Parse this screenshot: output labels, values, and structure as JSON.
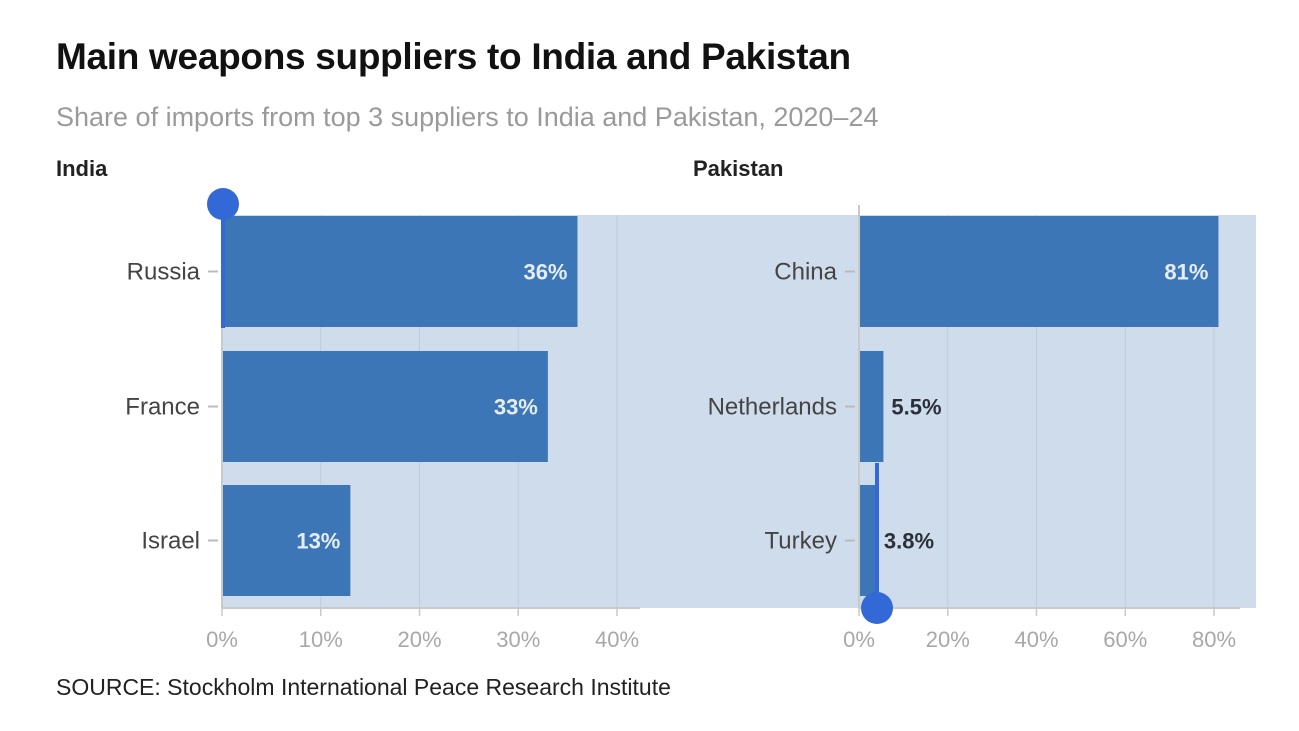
{
  "title": "Main weapons suppliers to India and Pakistan",
  "subtitle": "Share of imports from top 3 suppliers to India and Pakistan, 2020–24",
  "source": "SOURCE: Stockholm International Peace Research Institute",
  "colors": {
    "bar": "#3d76b6",
    "plot_background": "#cfdcec",
    "handle": "#3369d6",
    "label_inside": "#e4edf8",
    "label_outside": "#2a2f3a"
  },
  "chart_data": [
    {
      "type": "bar",
      "orientation": "horizontal",
      "panel_title": "India",
      "categories": [
        "Russia",
        "France",
        "Israel"
      ],
      "values": [
        36,
        33,
        13
      ],
      "value_labels": [
        "36%",
        "33%",
        "13%"
      ],
      "xlim": [
        0,
        44
      ],
      "xticks": [
        0,
        10,
        20,
        30,
        40
      ],
      "xtick_labels": [
        "0%",
        "10%",
        "20%",
        "30%",
        "40%"
      ],
      "unit": "%"
    },
    {
      "type": "bar",
      "orientation": "horizontal",
      "panel_title": "Pakistan",
      "categories": [
        "China",
        "Netherlands",
        "Turkey"
      ],
      "values": [
        81,
        5.5,
        3.8
      ],
      "value_labels": [
        "81%",
        "5.5%",
        "3.8%"
      ],
      "xlim": [
        0,
        90
      ],
      "xticks": [
        0,
        20,
        40,
        60,
        80
      ],
      "xtick_labels": [
        "0%",
        "20%",
        "40%",
        "60%",
        "80%"
      ],
      "unit": "%"
    }
  ]
}
